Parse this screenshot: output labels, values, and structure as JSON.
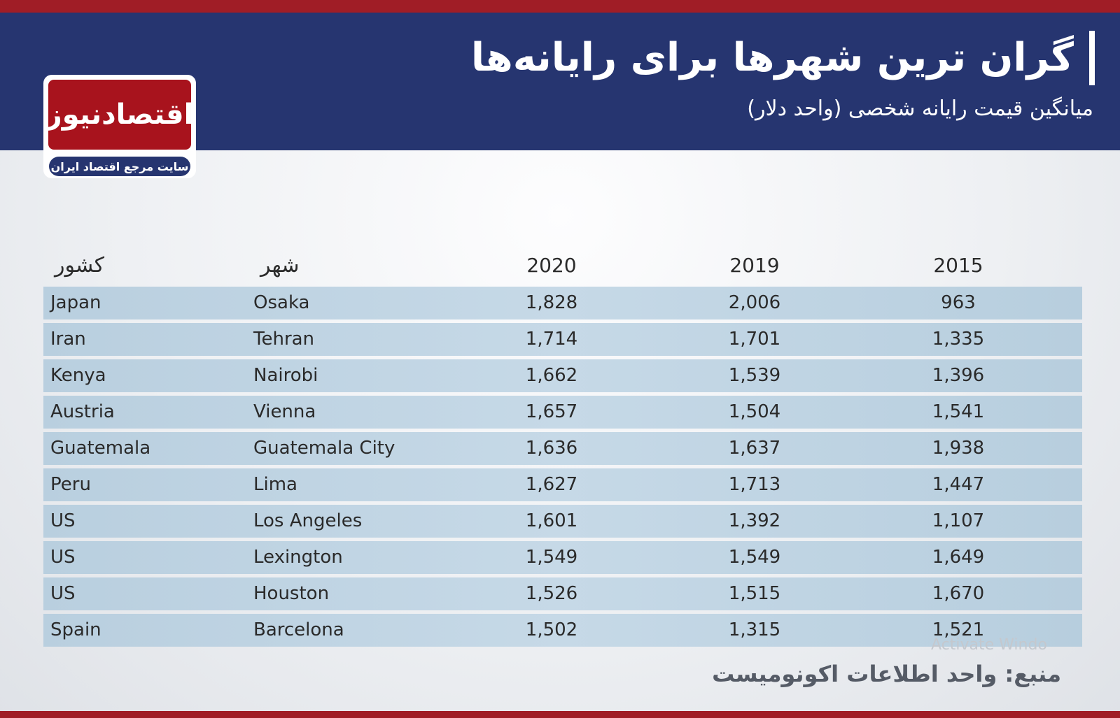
{
  "header": {
    "title": "گران ترین شهرها برای رایانه‌ها",
    "subtitle": "میانگین قیمت رایانه شخصی (واحد دلار)"
  },
  "logo": {
    "name": "اقتصادنیوز",
    "tagline": "سایت مرجع اقتصاد ایران"
  },
  "colors": {
    "header_bg": "#263570",
    "accent_red": "#a01d26",
    "row_bg": "#c6d9e7"
  },
  "chart_data": {
    "type": "table",
    "title": "گران ترین شهرها برای رایانه‌ها",
    "subtitle": "میانگین قیمت رایانه شخصی (واحد دلار)",
    "columns": [
      "کشور",
      "شهر",
      "2020",
      "2019",
      "2015"
    ],
    "rows": [
      {
        "country": "Japan",
        "city": "Osaka",
        "y2020": "1,828",
        "y2019": "2,006",
        "y2015": "963"
      },
      {
        "country": "Iran",
        "city": "Tehran",
        "y2020": "1,714",
        "y2019": "1,701",
        "y2015": "1,335"
      },
      {
        "country": "Kenya",
        "city": "Nairobi",
        "y2020": "1,662",
        "y2019": "1,539",
        "y2015": "1,396"
      },
      {
        "country": "Austria",
        "city": "Vienna",
        "y2020": "1,657",
        "y2019": "1,504",
        "y2015": "1,541"
      },
      {
        "country": "Guatemala",
        "city": "Guatemala City",
        "y2020": "1,636",
        "y2019": "1,637",
        "y2015": "1,938"
      },
      {
        "country": "Peru",
        "city": "Lima",
        "y2020": "1,627",
        "y2019": "1,713",
        "y2015": "1,447"
      },
      {
        "country": "US",
        "city": "Los Angeles",
        "y2020": "1,601",
        "y2019": "1,392",
        "y2015": "1,107"
      },
      {
        "country": "US",
        "city": "Lexington",
        "y2020": "1,549",
        "y2019": "1,549",
        "y2015": "1,649"
      },
      {
        "country": "US",
        "city": "Houston",
        "y2020": "1,526",
        "y2019": "1,515",
        "y2015": "1,670"
      },
      {
        "country": "Spain",
        "city": "Barcelona",
        "y2020": "1,502",
        "y2019": "1,315",
        "y2015": "1,521"
      }
    ]
  },
  "footer": {
    "source": "منبع: واحد اطلاعات اکونومیست",
    "watermark": "Activate Windo"
  }
}
